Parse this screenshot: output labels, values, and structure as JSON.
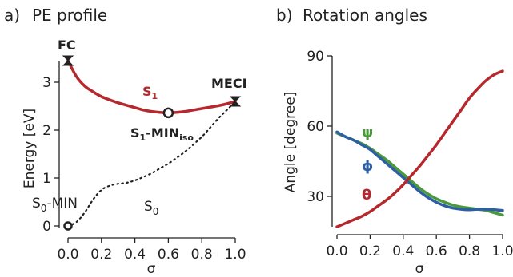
{
  "chart_data": [
    {
      "type": "line",
      "panel_label": "a)",
      "title": "PE profile",
      "xlabel": "σ",
      "ylabel": "Energy [eV]",
      "xlim": [
        0.0,
        1.0
      ],
      "ylim": [
        0,
        3.4
      ],
      "xticks": [
        "0.0",
        "0.2",
        "0.4",
        "0.6",
        "0.8",
        "1.0"
      ],
      "yticks": [
        "0",
        "1",
        "2",
        "3"
      ],
      "series": [
        {
          "name": "S1",
          "color": "#b5292e",
          "style": "solid",
          "x": [
            0.0,
            0.05,
            0.1,
            0.15,
            0.2,
            0.25,
            0.3,
            0.35,
            0.4,
            0.45,
            0.5,
            0.55,
            0.6,
            0.65,
            0.7,
            0.75,
            0.8,
            0.85,
            0.9,
            0.95,
            1.0
          ],
          "y": [
            3.45,
            3.12,
            2.92,
            2.8,
            2.7,
            2.63,
            2.57,
            2.52,
            2.47,
            2.42,
            2.39,
            2.37,
            2.36,
            2.37,
            2.39,
            2.42,
            2.45,
            2.48,
            2.51,
            2.55,
            2.6
          ]
        },
        {
          "name": "S0",
          "color": "#222222",
          "style": "dotted",
          "x": [
            0.0,
            0.05,
            0.1,
            0.15,
            0.2,
            0.25,
            0.3,
            0.35,
            0.4,
            0.45,
            0.5,
            0.55,
            0.6,
            0.65,
            0.7,
            0.75,
            0.8,
            0.85,
            0.9,
            0.95,
            1.0
          ],
          "y": [
            0.0,
            0.08,
            0.28,
            0.55,
            0.75,
            0.84,
            0.88,
            0.9,
            0.95,
            1.02,
            1.1,
            1.2,
            1.3,
            1.42,
            1.55,
            1.7,
            1.86,
            2.05,
            2.25,
            2.42,
            2.6
          ]
        }
      ],
      "points": [
        {
          "label": "FC",
          "x": 0.0,
          "y": 3.45,
          "marker": "hourglass"
        },
        {
          "label": "MECI",
          "x": 1.0,
          "y": 2.6,
          "marker": "hourglass"
        },
        {
          "label_main": "S",
          "label_sub": "1",
          "label_tail": "-MIN",
          "label_tail_sub": "iso",
          "x": 0.6,
          "y": 2.36,
          "marker": "open-circle"
        },
        {
          "label_main": "S",
          "label_sub": "0",
          "label_tail": "-MIN",
          "x": 0.0,
          "y": 0.0,
          "marker": "open-circle"
        }
      ],
      "annotations": {
        "s1_main": "S",
        "s1_sub": "1",
        "s0_main": "S",
        "s0_sub": "0"
      }
    },
    {
      "type": "line",
      "panel_label": "b)",
      "title": "Rotation angles",
      "xlabel": "σ",
      "ylabel": "Angle [degree]",
      "xlim": [
        0.0,
        1.0
      ],
      "ylim": [
        15,
        90
      ],
      "xticks": [
        "0.0",
        "0.2",
        "0.4",
        "0.6",
        "0.8",
        "1.0"
      ],
      "yticks": [
        "30",
        "60",
        "90"
      ],
      "series": [
        {
          "name": "ψ",
          "color": "#4a9a3c",
          "x": [
            0.0,
            0.05,
            0.1,
            0.15,
            0.2,
            0.25,
            0.3,
            0.35,
            0.4,
            0.45,
            0.5,
            0.55,
            0.6,
            0.65,
            0.7,
            0.75,
            0.8,
            0.85,
            0.9,
            0.95,
            1.0
          ],
          "y": [
            57,
            55.5,
            54,
            52.5,
            50.5,
            48,
            45.5,
            42.5,
            39.5,
            36.5,
            33.5,
            31,
            29,
            27.5,
            26.3,
            25.5,
            25,
            24.5,
            24,
            23,
            22
          ]
        },
        {
          "name": "ϕ",
          "color": "#2f5fa3",
          "x": [
            0.0,
            0.05,
            0.1,
            0.15,
            0.2,
            0.25,
            0.3,
            0.35,
            0.4,
            0.45,
            0.5,
            0.55,
            0.6,
            0.65,
            0.7,
            0.75,
            0.8,
            0.85,
            0.9,
            0.95,
            1.0
          ],
          "y": [
            57.5,
            55.5,
            54,
            52,
            50,
            47,
            44,
            41,
            38,
            35,
            32,
            29.5,
            27.5,
            26,
            25,
            24.5,
            24.3,
            24.5,
            24.5,
            24.3,
            24
          ]
        },
        {
          "name": "θ",
          "color": "#b5292e",
          "x": [
            0.0,
            0.05,
            0.1,
            0.15,
            0.2,
            0.25,
            0.3,
            0.35,
            0.4,
            0.45,
            0.5,
            0.55,
            0.6,
            0.65,
            0.7,
            0.75,
            0.8,
            0.85,
            0.9,
            0.95,
            1.0
          ],
          "y": [
            17,
            18.5,
            20,
            21.5,
            23.5,
            26,
            28.5,
            31.5,
            35,
            39,
            43,
            47.5,
            52,
            57,
            62,
            67,
            72,
            76,
            79.5,
            82,
            83.5
          ]
        }
      ]
    }
  ]
}
